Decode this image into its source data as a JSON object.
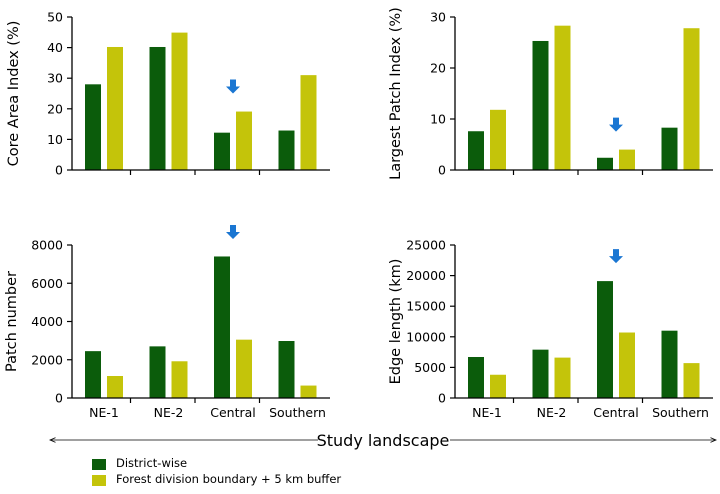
{
  "colors": {
    "district": "#0b5c0b",
    "buffer": "#c4c40a",
    "arrow": "#1a76d2",
    "axis": "#000000"
  },
  "x_axis_label": "Study landscape",
  "legend": {
    "district_label": "District-wise",
    "buffer_label": "Forest division boundary + 5 km buffer"
  },
  "chart_data": [
    {
      "type": "bar",
      "title": "",
      "xlabel": "",
      "ylabel": "Core  Area Index (%)",
      "ylim": [
        0,
        50
      ],
      "yticks": [
        "0",
        "10",
        "20",
        "30",
        "40",
        "50"
      ],
      "categories": [
        "NE-1",
        "NE-2",
        "Central",
        "Southern"
      ],
      "show_category_labels": false,
      "series": [
        {
          "name": "District-wise",
          "values": [
            28,
            40.2,
            12.2,
            12.9
          ]
        },
        {
          "name": "Forest division boundary + 5 km buffer",
          "values": [
            40.2,
            44.9,
            19.1,
            31
          ]
        }
      ],
      "arrow_category": "Central"
    },
    {
      "type": "bar",
      "title": "",
      "xlabel": "",
      "ylabel": "Largest Patch Index (%)",
      "ylim": [
        0,
        30
      ],
      "yticks": [
        "0",
        "10",
        "20",
        "30"
      ],
      "categories": [
        "NE-1",
        "NE-2",
        "Central",
        "Southern"
      ],
      "show_category_labels": false,
      "series": [
        {
          "name": "District-wise",
          "values": [
            7.6,
            25.3,
            2.4,
            8.3
          ]
        },
        {
          "name": "Forest division boundary + 5 km buffer",
          "values": [
            11.8,
            28.3,
            4.0,
            27.8
          ]
        }
      ],
      "arrow_category": "Central"
    },
    {
      "type": "bar",
      "title": "",
      "xlabel": "",
      "ylabel": "Patch number",
      "ylim": [
        0,
        8000
      ],
      "yticks": [
        "0",
        "2000",
        "4000",
        "6000",
        "8000"
      ],
      "categories": [
        "NE-1",
        "NE-2",
        "Central",
        "Southern"
      ],
      "show_category_labels": true,
      "series": [
        {
          "name": "District-wise",
          "values": [
            2450,
            2700,
            7400,
            2980
          ]
        },
        {
          "name": "Forest division boundary + 5 km buffer",
          "values": [
            1150,
            1920,
            3050,
            650
          ]
        }
      ],
      "arrow_category": "Central"
    },
    {
      "type": "bar",
      "title": "",
      "xlabel": "",
      "ylabel": "Edge length (km)",
      "ylim": [
        0,
        25000
      ],
      "yticks": [
        "0",
        "5000",
        "10000",
        "15000",
        "20000",
        "25000"
      ],
      "categories": [
        "NE-1",
        "NE-2",
        "Central",
        "Southern"
      ],
      "show_category_labels": true,
      "series": [
        {
          "name": "District-wise",
          "values": [
            6700,
            7900,
            19100,
            11000
          ]
        },
        {
          "name": "Forest division boundary + 5 km buffer",
          "values": [
            3800,
            6600,
            10700,
            5700
          ]
        }
      ],
      "arrow_category": "Central"
    }
  ]
}
